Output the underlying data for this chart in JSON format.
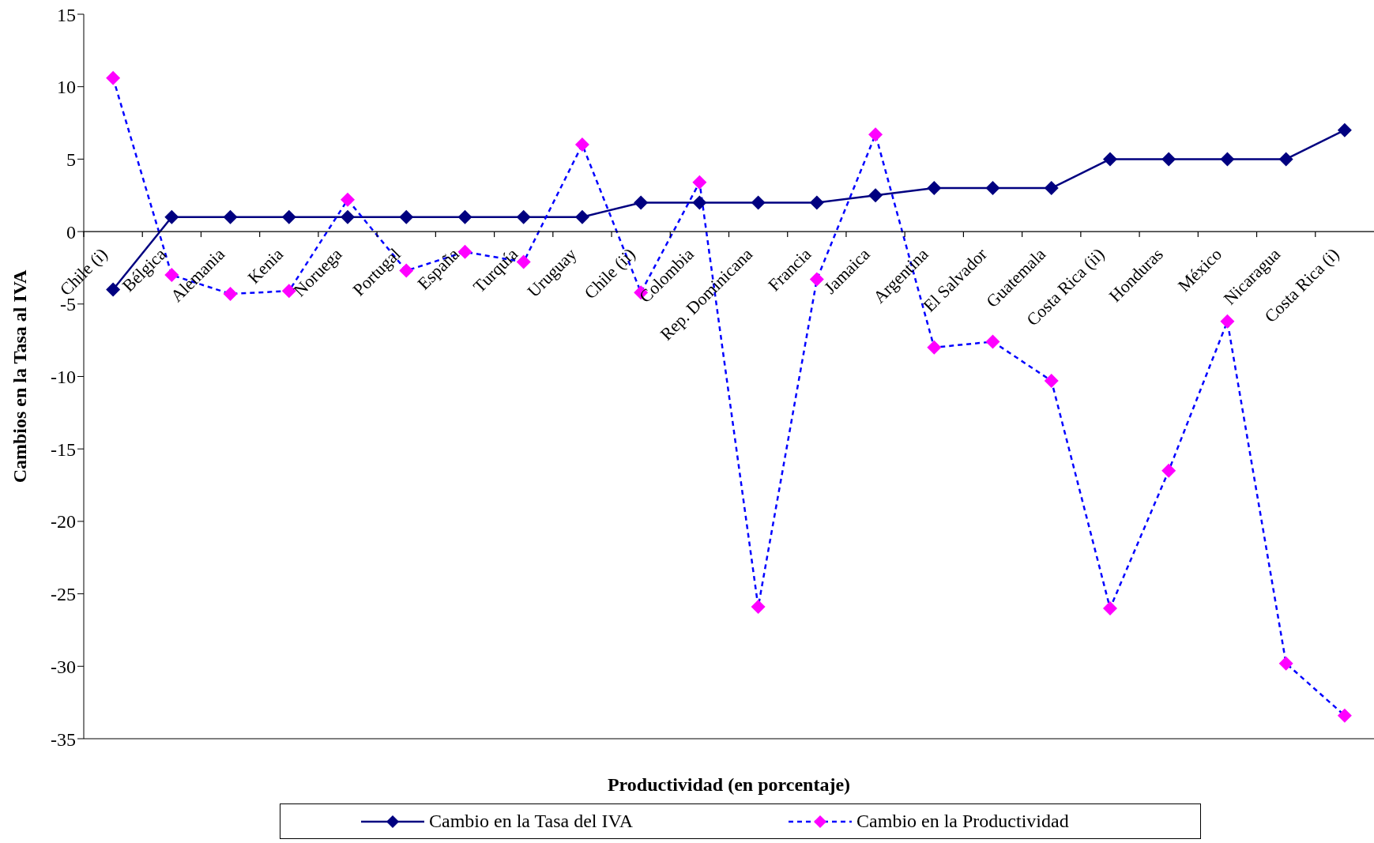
{
  "chart_data": {
    "type": "line",
    "xlabel": "Productividad (en porcentaje)",
    "ylabel": "Cambios en la Tasa al IVA",
    "categories": [
      "Chile (i)",
      "Bélgica",
      "Alemania",
      "Kenia",
      "Noruega",
      "Portugal",
      "España",
      "Turquía",
      "Uruguay",
      "Chile (ii)",
      "Colombia",
      "Rep. Dominicana",
      "Francia",
      "Jamaica",
      "Argentina",
      "El Salvador",
      "Guatemala",
      "Costa Rica (ii)",
      "Honduras",
      "México",
      "Nicaragua",
      "Costa Rica (i)"
    ],
    "series": [
      {
        "name": "Cambio en la Tasa del IVA",
        "color": "#000080",
        "line_style": "solid",
        "values": [
          -4,
          1,
          1,
          1,
          1,
          1,
          1,
          1,
          1,
          2,
          2,
          2,
          2,
          2.5,
          3,
          3,
          3,
          5,
          5,
          5,
          5,
          7
        ]
      },
      {
        "name": "Cambio en la Productividad",
        "color": "#0000ff",
        "line_style": "dashed",
        "colors": [
          "#ff00ff",
          "#ff00ff",
          "#ff00ff",
          "#ff00ff",
          "#ff00ff",
          "#ff00ff",
          "#ff00ff",
          "#ff00ff",
          "#ff00ff",
          "#ff00ff",
          "#ff00ff",
          "#ff00ff",
          "#ff00ff",
          "#ff00ff",
          "#ff00ff",
          "#ff00ff",
          "#ff00ff",
          "#ff00ff",
          "#ff00ff",
          "#ff00ff",
          "#ff00ff",
          "#ff00ff"
        ],
        "values": [
          10.6,
          -3.0,
          -4.3,
          -4.1,
          2.2,
          -2.7,
          -1.4,
          -2.1,
          6.0,
          -4.2,
          3.4,
          -25.9,
          -3.3,
          6.7,
          -8.0,
          -7.6,
          -10.3,
          -26.0,
          -16.5,
          -6.2,
          -29.8,
          -33.4
        ]
      }
    ],
    "ylim": [
      -35,
      15
    ],
    "yticks": [
      -35,
      -30,
      -25,
      -20,
      -15,
      -10,
      -5,
      0,
      5,
      10,
      15
    ],
    "marker": "diamond",
    "legend": "bottom"
  }
}
